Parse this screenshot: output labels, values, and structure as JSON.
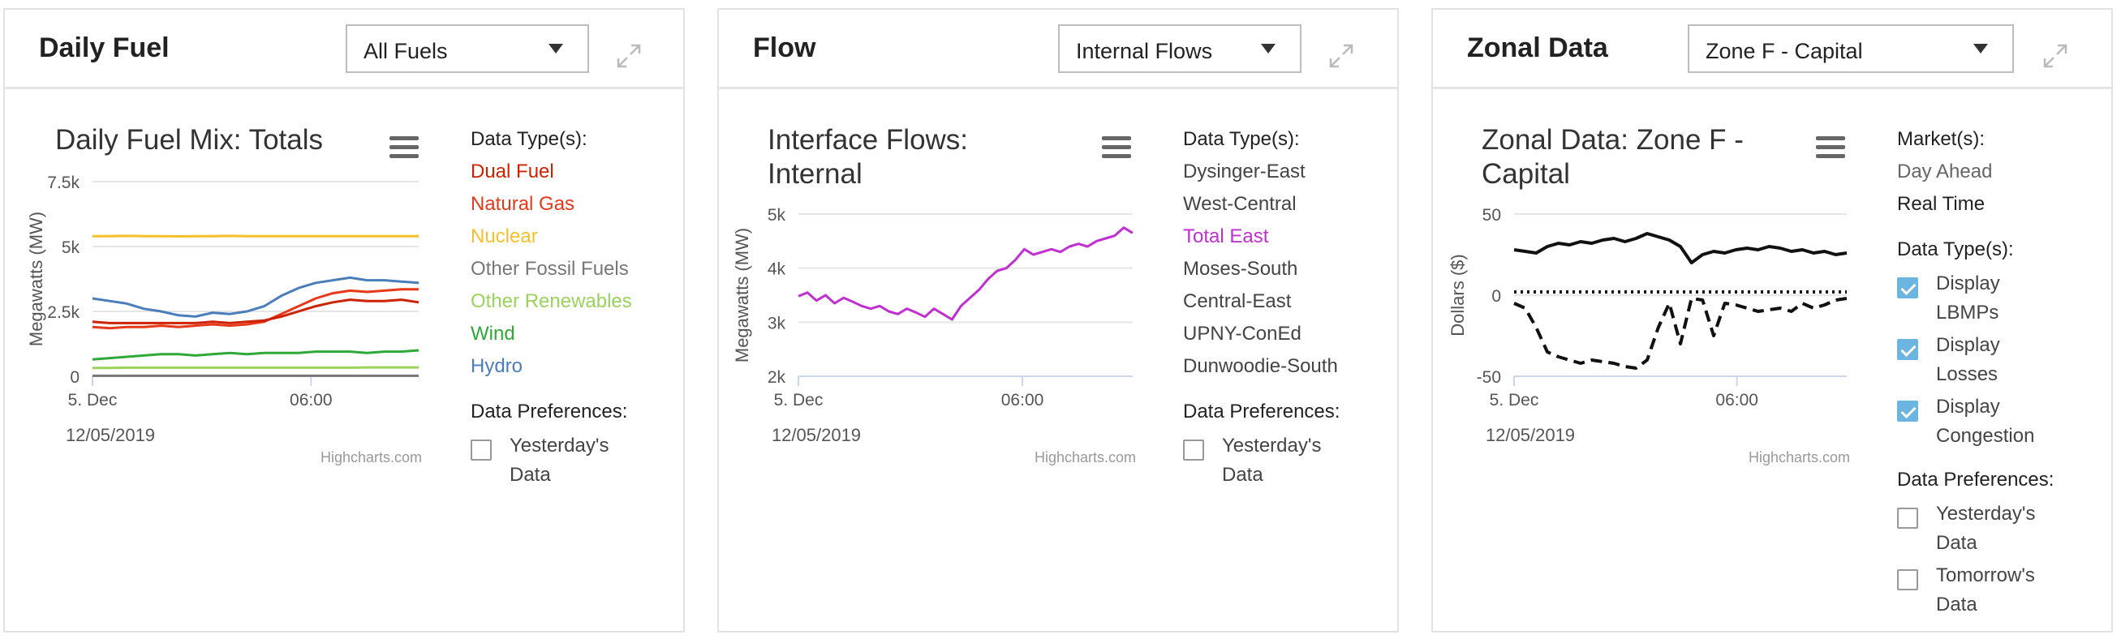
{
  "panels": [
    {
      "title": "Daily Fuel",
      "dropdown": "All Fuels",
      "chart_title_lines": [
        "Daily Fuel Mix: Totals"
      ],
      "date": "12/05/2019",
      "credit": "Highcharts.com",
      "side_header": "Data Type(s):",
      "items": [
        {
          "label": "Dual Fuel",
          "color": "#cc2200"
        },
        {
          "label": "Natural Gas",
          "color": "#e8381a"
        },
        {
          "label": "Nuclear",
          "color": "#f5c02b"
        },
        {
          "label": "Other Fossil Fuels",
          "color": "#777777"
        },
        {
          "label": "Other Renewables",
          "color": "#9bd35a"
        },
        {
          "label": "Wind",
          "color": "#2ea836"
        },
        {
          "label": "Hydro",
          "color": "#4a7ebb"
        }
      ],
      "prefs_header": "Data Preferences:",
      "prefs": [
        {
          "label1": "Yesterday's",
          "label2": "Data",
          "checked": false
        }
      ]
    },
    {
      "title": "Flow",
      "dropdown": "Internal Flows",
      "chart_title_lines": [
        "Interface Flows:",
        "Internal"
      ],
      "date": "12/05/2019",
      "credit": "Highcharts.com",
      "side_header": "Data Type(s):",
      "items": [
        {
          "label": "Dysinger-East",
          "color": "#444444"
        },
        {
          "label": "West-Central",
          "color": "#444444"
        },
        {
          "label": "Total East",
          "color": "#c02fcf"
        },
        {
          "label": "Moses-South",
          "color": "#444444"
        },
        {
          "label": "Central-East",
          "color": "#444444"
        },
        {
          "label": "UPNY-ConEd",
          "color": "#444444"
        },
        {
          "label": "Dunwoodie-South",
          "color": "#444444"
        }
      ],
      "prefs_header": "Data Preferences:",
      "prefs": [
        {
          "label1": "Yesterday's",
          "label2": "Data",
          "checked": false
        }
      ]
    },
    {
      "title": "Zonal Data",
      "dropdown": "Zone F - Capital",
      "chart_title_lines": [
        "Zonal Data: Zone F -",
        "Capital"
      ],
      "date": "12/05/2019",
      "credit": "Highcharts.com",
      "side_header": "Market(s):",
      "items": [
        {
          "label": "Day Ahead",
          "color": "#666666"
        },
        {
          "label": "Real Time",
          "color": "#222222"
        }
      ],
      "types_header": "Data Type(s):",
      "types": [
        {
          "label1": "Display",
          "label2": "LBMPs",
          "checked": true
        },
        {
          "label1": "Display",
          "label2": "Losses",
          "checked": true
        },
        {
          "label1": "Display",
          "label2": "Congestion",
          "checked": true
        }
      ],
      "prefs_header": "Data Preferences:",
      "prefs": [
        {
          "label1": "Yesterday's",
          "label2": "Data",
          "checked": false
        },
        {
          "label1": "Tomorrow's",
          "label2": "Data",
          "checked": false
        }
      ]
    }
  ],
  "chart_data": [
    {
      "type": "line",
      "title": "Daily Fuel Mix: Totals",
      "ylabel": "Megawatts (MW)",
      "ylim": [
        0,
        7500
      ],
      "y_ticks": [
        "0",
        "2.5k",
        "5k",
        "7.5k"
      ],
      "x_ticks": [
        "5. Dec",
        "06:00"
      ],
      "grid": true,
      "series": [
        {
          "name": "Nuclear",
          "color": "#f5c02b",
          "values": [
            5400,
            5400,
            5410,
            5400,
            5400,
            5390,
            5400,
            5400,
            5410,
            5400,
            5400,
            5400,
            5400,
            5400,
            5400,
            5400,
            5400,
            5400,
            5400,
            5400
          ]
        },
        {
          "name": "Hydro",
          "color": "#4a7ebb",
          "values": [
            3000,
            2900,
            2800,
            2600,
            2500,
            2350,
            2300,
            2450,
            2400,
            2500,
            2700,
            3100,
            3400,
            3600,
            3700,
            3800,
            3700,
            3700,
            3650,
            3600
          ]
        },
        {
          "name": "Natural Gas",
          "color": "#e8381a",
          "values": [
            1900,
            1850,
            1900,
            1900,
            1950,
            1900,
            1950,
            2000,
            1950,
            2000,
            2100,
            2400,
            2700,
            3000,
            3200,
            3300,
            3250,
            3300,
            3350,
            3350
          ]
        },
        {
          "name": "Dual Fuel",
          "color": "#cc2200",
          "values": [
            2100,
            2050,
            2050,
            2050,
            2050,
            2050,
            2050,
            2100,
            2050,
            2100,
            2150,
            2300,
            2500,
            2700,
            2850,
            2950,
            2900,
            2900,
            2950,
            2850
          ]
        },
        {
          "name": "Wind",
          "color": "#2ea836",
          "values": [
            650,
            700,
            750,
            800,
            850,
            850,
            800,
            850,
            900,
            850,
            900,
            900,
            900,
            950,
            950,
            950,
            900,
            950,
            950,
            1000
          ]
        },
        {
          "name": "Other Renewables",
          "color": "#9bd35a",
          "values": [
            320,
            320,
            330,
            330,
            330,
            330,
            330,
            330,
            330,
            330,
            330,
            330,
            330,
            330,
            330,
            330,
            340,
            340,
            340,
            340
          ]
        },
        {
          "name": "Other Fossil Fuels",
          "color": "#777777",
          "values": [
            20,
            20,
            20,
            20,
            20,
            20,
            20,
            20,
            20,
            20,
            20,
            20,
            20,
            20,
            20,
            20,
            20,
            20,
            20,
            20
          ]
        }
      ]
    },
    {
      "type": "line",
      "title": "Interface Flows: Internal",
      "ylabel": "Megawatts (MW)",
      "ylim": [
        2000,
        5000
      ],
      "y_ticks": [
        "2k",
        "3k",
        "4k",
        "5k"
      ],
      "x_ticks": [
        "5. Dec",
        "06:00"
      ],
      "grid": true,
      "series": [
        {
          "name": "Total East",
          "color": "#c02fcf",
          "values": [
            3480,
            3550,
            3400,
            3500,
            3350,
            3450,
            3380,
            3300,
            3250,
            3300,
            3200,
            3150,
            3250,
            3180,
            3100,
            3250,
            3150,
            3050,
            3300,
            3450,
            3600,
            3800,
            3950,
            4000,
            4150,
            4350,
            4250,
            4300,
            4350,
            4300,
            4400,
            4450,
            4400,
            4500,
            4550,
            4600,
            4750,
            4650
          ]
        }
      ]
    },
    {
      "type": "line",
      "title": "Zonal Data: Zone F - Capital",
      "ylabel": "Dollars ($)",
      "ylim": [
        -50,
        50
      ],
      "y_ticks": [
        "-50",
        "0",
        "50"
      ],
      "x_ticks": [
        "5. Dec",
        "06:00"
      ],
      "grid": true,
      "series": [
        {
          "name": "LBMP",
          "color": "#111111",
          "values": [
            28,
            27,
            26,
            30,
            32,
            31,
            33,
            32,
            34,
            35,
            33,
            35,
            38,
            36,
            34,
            30,
            20,
            25,
            27,
            26,
            28,
            29,
            28,
            30,
            29,
            27,
            28,
            26,
            27,
            25,
            26
          ]
        },
        {
          "name": "Losses",
          "color": "#111111",
          "values": [
            2,
            2,
            2,
            2,
            2,
            2,
            2,
            2,
            2,
            2,
            2,
            2,
            2,
            2,
            2,
            2,
            2,
            2,
            2,
            2,
            2,
            2,
            2,
            2,
            2,
            2,
            2,
            2,
            2,
            2,
            2
          ]
        },
        {
          "name": "Congestion",
          "color": "#111111",
          "values": [
            -5,
            -8,
            -20,
            -35,
            -38,
            -40,
            -42,
            -40,
            -41,
            -42,
            -44,
            -45,
            -40,
            -20,
            -5,
            -30,
            -2,
            -3,
            -25,
            -5,
            -6,
            -8,
            -10,
            -9,
            -8,
            -10,
            -5,
            -8,
            -6,
            -3,
            -2
          ]
        }
      ]
    }
  ]
}
